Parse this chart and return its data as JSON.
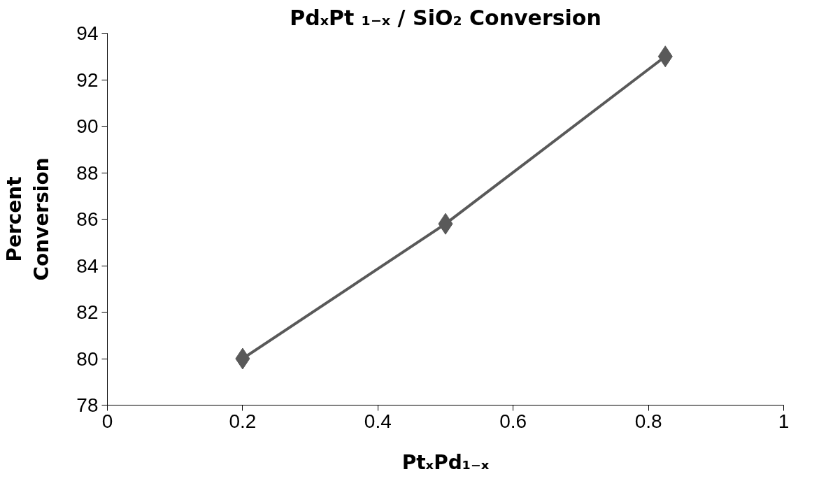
{
  "chart_data": {
    "type": "line",
    "title": "PdₓPt ₁₋ₓ / SiO₂ Conversion",
    "xlabel": "PtₓPd₁₋ₓ",
    "ylabel": "Percent\nConversion",
    "x": [
      0.2,
      0.5,
      0.825
    ],
    "series": [
      {
        "color": "#595959",
        "values": [
          80,
          85.8,
          93
        ]
      }
    ],
    "xlim": [
      0,
      1
    ],
    "xticks": [
      0,
      0.2,
      0.4,
      0.6,
      0.8,
      1
    ],
    "ylim": [
      78,
      94
    ],
    "yticks": [
      78,
      80,
      82,
      84,
      86,
      88,
      90,
      92,
      94
    ],
    "marker": "diamond",
    "line_style": "solid"
  }
}
